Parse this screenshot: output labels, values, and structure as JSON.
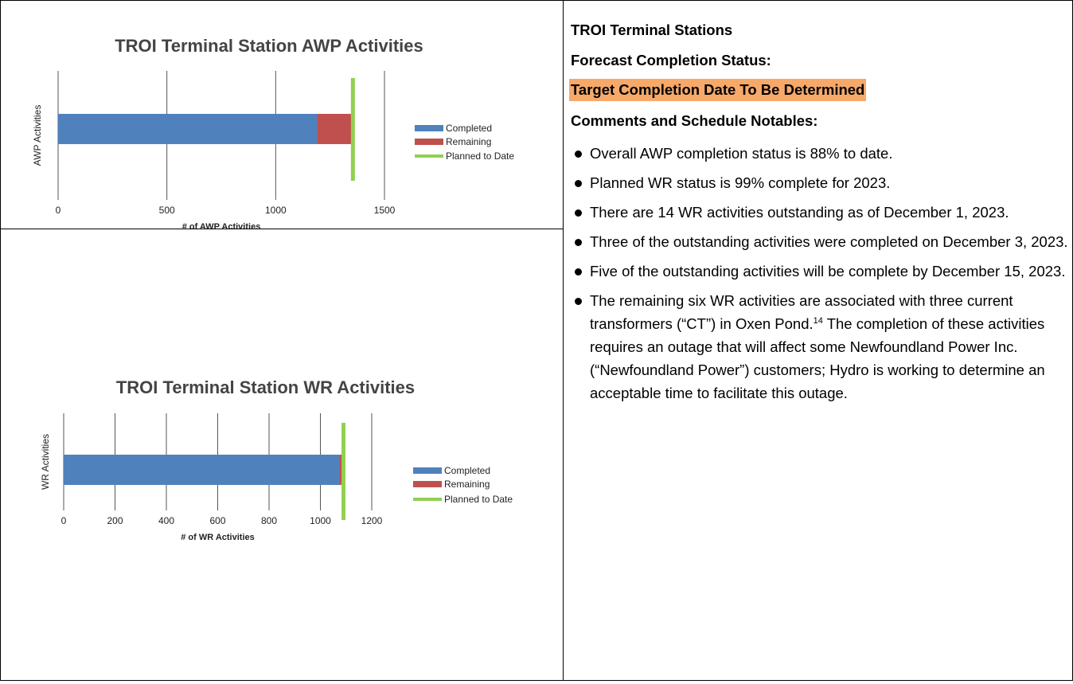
{
  "chart_data": [
    {
      "type": "bar",
      "orientation": "horizontal",
      "stacked": true,
      "title": "TROI Terminal Station AWP Activities",
      "xlabel": "# of AWP Activities",
      "ylabel": "AWP Activities",
      "categories": [
        null
      ],
      "series": [
        {
          "name": "Completed",
          "color": "#4f81bd",
          "values": [
            1191
          ]
        },
        {
          "name": "Remaining",
          "color": "#c0504d",
          "values": [
            162
          ]
        },
        {
          "name": "Planned to Date",
          "color": "#92d050",
          "type": "line",
          "values": [
            1355
          ]
        }
      ],
      "xlim": [
        0,
        1500
      ],
      "xticks": [
        0,
        500,
        1000,
        1500
      ],
      "grid": true,
      "legend": "right"
    },
    {
      "type": "bar",
      "orientation": "horizontal",
      "stacked": true,
      "title": "TROI Terminal Station WR Activities",
      "xlabel": "# of WR Activities",
      "ylabel": "WR Activities",
      "categories": [
        null
      ],
      "series": [
        {
          "name": "Completed",
          "color": "#4f81bd",
          "values": [
            1076
          ]
        },
        {
          "name": "Remaining",
          "color": "#c0504d",
          "values": [
            14
          ]
        },
        {
          "name": "Planned to Date",
          "color": "#92d050",
          "type": "line",
          "values": [
            1090
          ]
        }
      ],
      "xlim": [
        0,
        1200
      ],
      "xticks": [
        0,
        200,
        400,
        600,
        800,
        1000,
        1200
      ],
      "grid": true,
      "legend": "right"
    }
  ],
  "panel": {
    "title": "TROI Terminal Stations",
    "status_label": "Forecast Completion Status:",
    "status": "Target Completion Date To Be Determined",
    "comments_heading": "Comments and Schedule Notables:",
    "bullets": [
      "Overall AWP completion status is 88% to date.",
      "Planned WR status is 99% complete for 2023.",
      "There are 14 WR activities outstanding as of December 1, 2023.",
      "Three of the outstanding activities were completed on December 3, 2023.",
      "Five of the outstanding activities will be complete by December 15, 2023.",
      [
        "The remaining six WR activities are associated with three current transformers (“CT”) in Oxen Pond.",
        "14",
        "The completion of these activities requires an outage that will affect some Newfoundland Power Inc. (“Newfoundland Power”) customers; Hydro is working to determine an acceptable time to facilitate this outage."
      ]
    ]
  }
}
